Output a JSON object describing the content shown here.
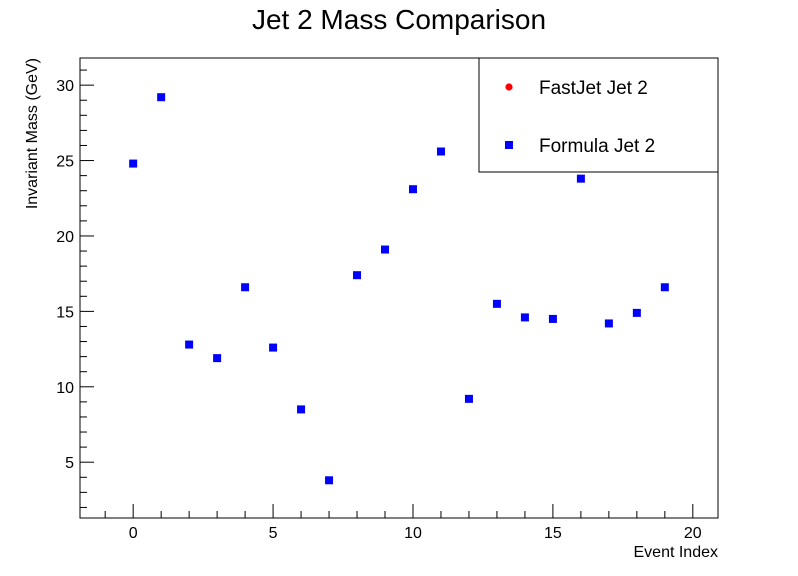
{
  "chart_data": {
    "type": "scatter",
    "title": "Jet 2 Mass Comparison",
    "xlabel": "Event Index",
    "ylabel": "Invariant Mass (GeV)",
    "xlim": [
      -1.9,
      20.9
    ],
    "ylim": [
      1.3,
      31.8
    ],
    "x_ticks": [
      0,
      5,
      10,
      15,
      20
    ],
    "y_ticks": [
      5,
      10,
      15,
      20,
      25,
      30
    ],
    "grid": false,
    "legend_position": "top-right",
    "series": [
      {
        "name": "FastJet Jet 2",
        "marker": "circle",
        "color": "#ff0000",
        "x": [
          0,
          1,
          2,
          3,
          4,
          5,
          6,
          7,
          8,
          9,
          10,
          11,
          12,
          13,
          14,
          15,
          16,
          17,
          18,
          19
        ],
        "y": [
          24.8,
          29.2,
          12.8,
          11.9,
          16.6,
          12.6,
          8.5,
          3.8,
          17.4,
          19.1,
          23.1,
          25.6,
          9.2,
          15.5,
          14.6,
          14.5,
          23.8,
          14.2,
          14.9,
          16.6
        ]
      },
      {
        "name": "Formula Jet 2",
        "marker": "square",
        "color": "#0000ff",
        "x": [
          0,
          1,
          2,
          3,
          4,
          5,
          6,
          7,
          8,
          9,
          10,
          11,
          12,
          13,
          14,
          15,
          16,
          17,
          18,
          19
        ],
        "y": [
          24.8,
          29.2,
          12.8,
          11.9,
          16.6,
          12.6,
          8.5,
          3.8,
          17.4,
          19.1,
          23.1,
          25.6,
          9.2,
          15.5,
          14.6,
          14.5,
          23.8,
          14.2,
          14.9,
          16.6
        ]
      }
    ]
  }
}
